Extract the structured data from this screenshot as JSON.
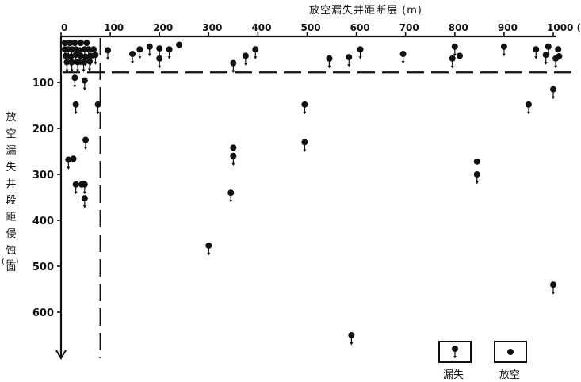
{
  "chart_data": {
    "type": "scatter",
    "xlabel": "放空漏失井距断层 (m)",
    "ylabel": "放空漏失井段距侵蚀面",
    "ylabel_unit": "(m)",
    "xlim": [
      0,
      1000
    ],
    "ylim": [
      0,
      700
    ],
    "y_inverted": true,
    "x_ticks": [
      0,
      100,
      200,
      300,
      400,
      500,
      600,
      700,
      800,
      900,
      1000
    ],
    "x_tick_labels": [
      "0",
      "100",
      "200",
      "300",
      "400",
      "500",
      "600",
      "700",
      "800",
      "900",
      "1000 (m)"
    ],
    "y_ticks": [
      100,
      200,
      300,
      400,
      500,
      600
    ],
    "x_axis_position": "top",
    "grid": false,
    "threshold_lines": {
      "x": 80,
      "y": 78
    },
    "legend_placement": "bottom-right",
    "legend": [
      {
        "marker": "lost-circulation",
        "label": "漏失"
      },
      {
        "marker": "drilling-break",
        "label": "放空"
      }
    ],
    "series": [
      {
        "name": "漏失",
        "marker": "lost-circulation",
        "points": [
          [
            8,
            28
          ],
          [
            15,
            28
          ],
          [
            22,
            28
          ],
          [
            30,
            28
          ],
          [
            38,
            30
          ],
          [
            48,
            28
          ],
          [
            56,
            28
          ],
          [
            66,
            28
          ],
          [
            10,
            42
          ],
          [
            20,
            44
          ],
          [
            30,
            40
          ],
          [
            40,
            42
          ],
          [
            50,
            44
          ],
          [
            60,
            42
          ],
          [
            70,
            40
          ],
          [
            12,
            56
          ],
          [
            22,
            56
          ],
          [
            34,
            56
          ],
          [
            46,
            56
          ],
          [
            58,
            54
          ],
          [
            28,
            90
          ],
          [
            48,
            96
          ],
          [
            30,
            148
          ],
          [
            75,
            148
          ],
          [
            50,
            225
          ],
          [
            15,
            268
          ],
          [
            30,
            322
          ],
          [
            48,
            322
          ],
          [
            48,
            352
          ],
          [
            95,
            30
          ],
          [
            145,
            38
          ],
          [
            160,
            28
          ],
          [
            180,
            22
          ],
          [
            200,
            26
          ],
          [
            220,
            28
          ],
          [
            200,
            48
          ],
          [
            350,
            58
          ],
          [
            375,
            42
          ],
          [
            395,
            28
          ],
          [
            350,
            260
          ],
          [
            345,
            340
          ],
          [
            300,
            455
          ],
          [
            495,
            148
          ],
          [
            495,
            230
          ],
          [
            545,
            48
          ],
          [
            585,
            45
          ],
          [
            608,
            28
          ],
          [
            695,
            38
          ],
          [
            590,
            650
          ],
          [
            795,
            48
          ],
          [
            800,
            22
          ],
          [
            845,
            300
          ],
          [
            900,
            22
          ],
          [
            965,
            28
          ],
          [
            985,
            40
          ],
          [
            990,
            22
          ],
          [
            1005,
            48
          ],
          [
            950,
            148
          ],
          [
            1000,
            115
          ],
          [
            1000,
            540
          ]
        ]
      },
      {
        "name": "放空",
        "marker": "drilling-break",
        "points": [
          [
            8,
            14
          ],
          [
            18,
            14
          ],
          [
            28,
            14
          ],
          [
            40,
            14
          ],
          [
            52,
            14
          ],
          [
            25,
            266
          ],
          [
            42,
            322
          ],
          [
            240,
            18
          ],
          [
            350,
            242
          ],
          [
            810,
            42
          ],
          [
            845,
            272
          ],
          [
            1010,
            28
          ],
          [
            1012,
            43
          ]
        ]
      }
    ]
  }
}
